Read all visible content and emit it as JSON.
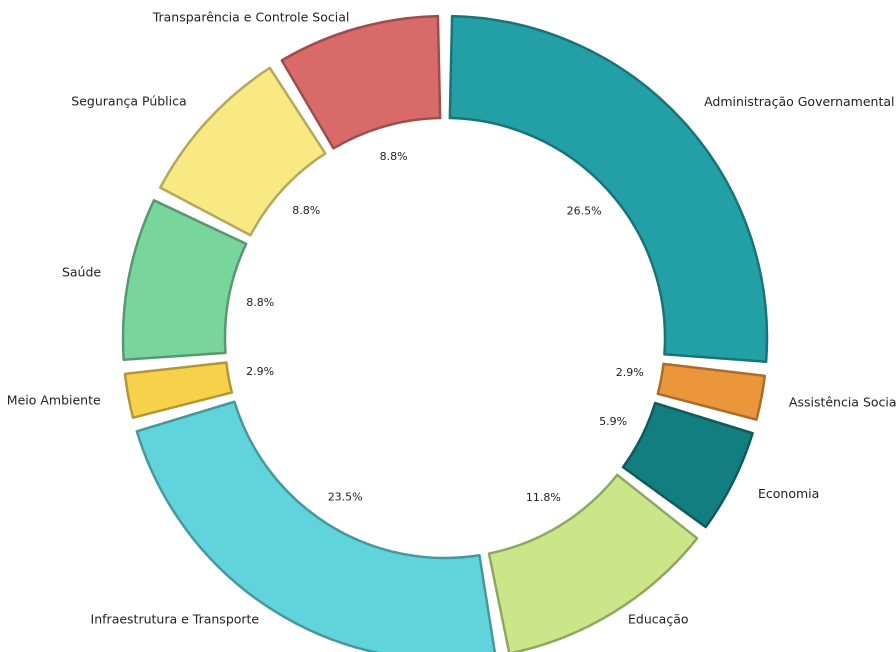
{
  "chart_data": {
    "type": "donut",
    "categories": [
      "Administração Governamental",
      "Assistência Social",
      "Economia",
      "Educação",
      "Infraestrutura e Transporte",
      "Meio Ambiente",
      "Saúde",
      "Segurança Pública",
      "Transparência e Controle Social"
    ],
    "values": [
      26.5,
      2.9,
      5.9,
      11.8,
      23.5,
      2.9,
      8.8,
      8.8,
      8.8
    ],
    "value_labels": [
      "26.5%",
      "2.9%",
      "5.9%",
      "11.8%",
      "23.5%",
      "2.9%",
      "8.8%",
      "8.8%",
      "8.8%"
    ],
    "colors": [
      "#23a0a6",
      "#ec963c",
      "#137e80",
      "#cbe689",
      "#61d3da",
      "#f8d14a",
      "#78d59b",
      "#f8e983",
      "#d86b6a"
    ]
  }
}
